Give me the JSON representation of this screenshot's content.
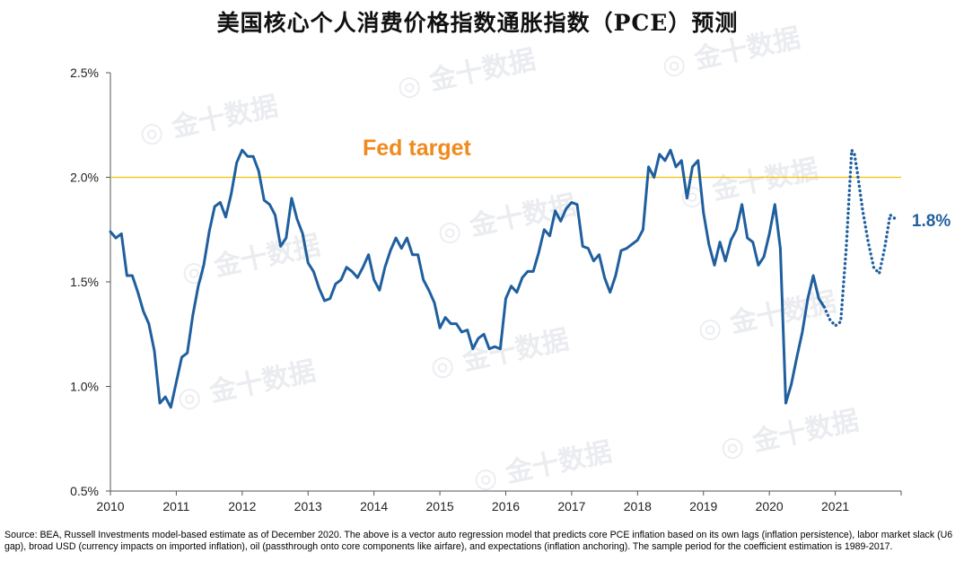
{
  "title": "美国核心个人消费价格指数通胀指数（PCE）预测",
  "watermark": "金十数据",
  "source_note": "Source: BEA, Russell Investments model-based estimate as of December 2020. The above is a vector auto regression model that predicts core PCE inflation based on its own lags (inflation persistence), labor market slack (U6 gap), broad USD (currency impacts on imported inflation), oil (passthrough onto core components like airfare), and expectations (inflation anchoring). The sample period for the coefficient estimation is 1989-2017.",
  "colors": {
    "series": "#1f5f9e",
    "target_line": "#f2c200",
    "target_label": "#f08a1c",
    "axis": "#555555"
  },
  "chart_data": {
    "type": "line",
    "title": "美国核心个人消费价格指数通胀指数（PCE）预测",
    "xlabel": "",
    "ylabel": "",
    "xlim": [
      2010,
      2022
    ],
    "ylim": [
      0.5,
      2.5
    ],
    "y_ticks": [
      0.5,
      1.0,
      1.5,
      2.0,
      2.5
    ],
    "y_tick_labels": [
      "0.5%",
      "1.0%",
      "1.5%",
      "2.0%",
      "2.5%"
    ],
    "x_ticks": [
      2010,
      2011,
      2012,
      2013,
      2014,
      2015,
      2016,
      2017,
      2018,
      2019,
      2020,
      2021
    ],
    "x_tick_labels": [
      "2010",
      "2011",
      "2012",
      "2013",
      "2014",
      "2015",
      "2016",
      "2017",
      "2018",
      "2019",
      "2020",
      "2021"
    ],
    "grid": false,
    "reference_line": {
      "y": 2.0,
      "label": "Fed target"
    },
    "end_label": "1.8%",
    "series": [
      {
        "style": "solid",
        "x": [
          2010.0,
          2010.083,
          2010.167,
          2010.25,
          2010.333,
          2010.417,
          2010.5,
          2010.583,
          2010.667,
          2010.75,
          2010.833,
          2010.917,
          2011.0,
          2011.083,
          2011.167,
          2011.25,
          2011.333,
          2011.417,
          2011.5,
          2011.583,
          2011.667,
          2011.75,
          2011.833,
          2011.917,
          2012.0,
          2012.083,
          2012.167,
          2012.25,
          2012.333,
          2012.417,
          2012.5,
          2012.583,
          2012.667,
          2012.75,
          2012.833,
          2012.917,
          2013.0,
          2013.083,
          2013.167,
          2013.25,
          2013.333,
          2013.417,
          2013.5,
          2013.583,
          2013.667,
          2013.75,
          2013.833,
          2013.917,
          2014.0,
          2014.083,
          2014.167,
          2014.25,
          2014.333,
          2014.417,
          2014.5,
          2014.583,
          2014.667,
          2014.75,
          2014.833,
          2014.917,
          2015.0,
          2015.083,
          2015.167,
          2015.25,
          2015.333,
          2015.417,
          2015.5,
          2015.583,
          2015.667,
          2015.75,
          2015.833,
          2015.917,
          2016.0,
          2016.083,
          2016.167,
          2016.25,
          2016.333,
          2016.417,
          2016.5,
          2016.583,
          2016.667,
          2016.75,
          2016.833,
          2016.917,
          2017.0,
          2017.083,
          2017.167,
          2017.25,
          2017.333,
          2017.417,
          2017.5,
          2017.583,
          2017.667,
          2017.75,
          2017.833,
          2017.917,
          2018.0,
          2018.083,
          2018.167,
          2018.25,
          2018.333,
          2018.417,
          2018.5,
          2018.583,
          2018.667,
          2018.75,
          2018.833,
          2018.917,
          2019.0,
          2019.083,
          2019.167,
          2019.25,
          2019.333,
          2019.417,
          2019.5,
          2019.583,
          2019.667,
          2019.75,
          2019.833,
          2019.917,
          2020.0,
          2020.083,
          2020.167,
          2020.25,
          2020.333,
          2020.417,
          2020.5,
          2020.583,
          2020.667,
          2020.75,
          2020.833
        ],
        "values": [
          1.74,
          1.71,
          1.73,
          1.53,
          1.53,
          1.45,
          1.36,
          1.3,
          1.17,
          0.92,
          0.95,
          0.9,
          1.02,
          1.14,
          1.16,
          1.34,
          1.48,
          1.58,
          1.74,
          1.86,
          1.88,
          1.81,
          1.92,
          2.07,
          2.13,
          2.1,
          2.1,
          2.03,
          1.89,
          1.87,
          1.82,
          1.67,
          1.71,
          1.9,
          1.8,
          1.73,
          1.59,
          1.55,
          1.47,
          1.41,
          1.42,
          1.49,
          1.51,
          1.57,
          1.55,
          1.52,
          1.57,
          1.63,
          1.51,
          1.46,
          1.57,
          1.65,
          1.71,
          1.66,
          1.71,
          1.63,
          1.63,
          1.51,
          1.46,
          1.4,
          1.28,
          1.33,
          1.3,
          1.3,
          1.26,
          1.27,
          1.18,
          1.23,
          1.25,
          1.18,
          1.19,
          1.18,
          1.42,
          1.48,
          1.45,
          1.52,
          1.55,
          1.55,
          1.64,
          1.75,
          1.72,
          1.84,
          1.79,
          1.85,
          1.88,
          1.87,
          1.67,
          1.66,
          1.6,
          1.63,
          1.52,
          1.45,
          1.53,
          1.65,
          1.66,
          1.68,
          1.7,
          1.75,
          2.05,
          2.0,
          2.11,
          2.08,
          2.13,
          2.05,
          2.08,
          1.9,
          2.05,
          2.08,
          1.83,
          1.68,
          1.58,
          1.69,
          1.6,
          1.7,
          1.75,
          1.87,
          1.71,
          1.69,
          1.58,
          1.62,
          1.73,
          1.87,
          1.66,
          0.92,
          1.01,
          1.14,
          1.26,
          1.42,
          1.53,
          1.42,
          1.38
        ]
      },
      {
        "style": "dotted",
        "x": [
          2020.833,
          2020.917,
          2021.0,
          2021.083,
          2021.167,
          2021.25,
          2021.292,
          2021.333,
          2021.417,
          2021.5,
          2021.583,
          2021.667,
          2021.75,
          2021.833,
          2021.917
        ],
        "values": [
          1.38,
          1.32,
          1.29,
          1.31,
          1.66,
          2.13,
          2.11,
          2.03,
          1.84,
          1.69,
          1.57,
          1.54,
          1.66,
          1.82,
          1.8
        ]
      }
    ]
  }
}
